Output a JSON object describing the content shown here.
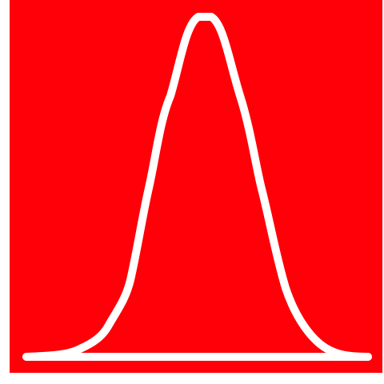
{
  "icon": {
    "name": "bell-curve-icon",
    "background_color": "#FF0008",
    "stroke_color": "#FFFFFF"
  }
}
